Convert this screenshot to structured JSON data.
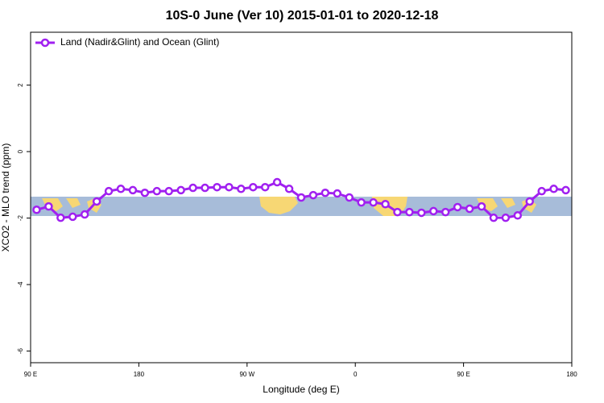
{
  "chart_data": {
    "type": "line",
    "title": "10S-0 June (Ver 10)   2015-01-01 to 2020-12-18",
    "x_label": "Longitude (deg E)",
    "y_label": "XCO2 - MLO trend (ppm)",
    "x": [
      95,
      105,
      115,
      125,
      135,
      145,
      155,
      165,
      175,
      185,
      195,
      205,
      215,
      225,
      235,
      245,
      255,
      265,
      275,
      285,
      295,
      305,
      315,
      325,
      335,
      345,
      355,
      365,
      375,
      385,
      395,
      405,
      415,
      425,
      435,
      445,
      455,
      465,
      475,
      485,
      495,
      505,
      515,
      525,
      535
    ],
    "series": [
      {
        "name": "Land (Nadir&Glint) and Ocean (Glint)",
        "color": "#a020f0",
        "values": [
          -1.75,
          -1.65,
          -1.99,
          -1.96,
          -1.89,
          -1.5,
          -1.19,
          -1.12,
          -1.16,
          -1.24,
          -1.19,
          -1.19,
          -1.16,
          -1.09,
          -1.09,
          -1.07,
          -1.07,
          -1.12,
          -1.07,
          -1.07,
          -0.92,
          -1.12,
          -1.38,
          -1.31,
          -1.24,
          -1.26,
          -1.38,
          -1.53,
          -1.53,
          -1.58,
          -1.82,
          -1.82,
          -1.84,
          -1.79,
          -1.82,
          -1.67,
          -1.72,
          -1.65,
          -1.99,
          -1.99,
          -1.92,
          -1.5,
          -1.19,
          -1.12,
          -1.16
        ]
      }
    ],
    "xlim": [
      90,
      540
    ],
    "xticks": [
      {
        "value": 90,
        "label": "90 E"
      },
      {
        "value": 180,
        "label": "180"
      },
      {
        "value": 270,
        "label": "90 W"
      },
      {
        "value": 360,
        "label": "0"
      },
      {
        "value": 450,
        "label": "90 E"
      },
      {
        "value": 540,
        "label": "180"
      }
    ],
    "ylim": [
      -6.35,
      3.59
    ],
    "yticks": [
      2,
      0,
      -2,
      -4,
      -6
    ],
    "legend": "top-left"
  }
}
